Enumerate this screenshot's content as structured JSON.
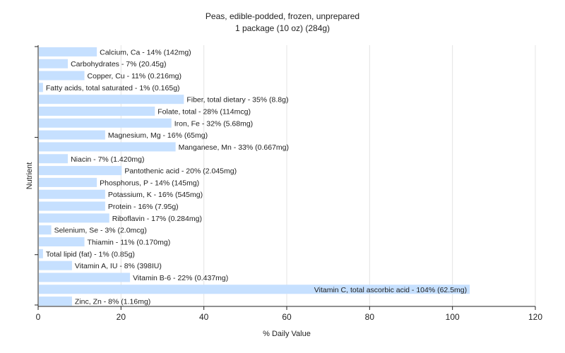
{
  "chart_data": {
    "type": "bar",
    "orientation": "horizontal",
    "title": "Peas, edible-podded, frozen, unprepared",
    "subtitle": "1 package (10 oz) (284g)",
    "xlabel": "% Daily Value",
    "ylabel": "Nutrient",
    "xlim": [
      0,
      120
    ],
    "xticks": [
      0,
      20,
      40,
      60,
      80,
      100,
      120
    ],
    "grid": true,
    "bar_color": "#c6e0ff",
    "categories": [
      "Calcium, Ca - 14% (142mg)",
      "Carbohydrates - 7% (20.45g)",
      "Copper, Cu - 11% (0.216mg)",
      "Fatty acids, total saturated - 1% (0.165g)",
      "Fiber, total dietary - 35% (8.8g)",
      "Folate, total - 28% (114mcg)",
      "Iron, Fe - 32% (5.68mg)",
      "Magnesium, Mg - 16% (65mg)",
      "Manganese, Mn - 33% (0.667mg)",
      "Niacin - 7% (1.420mg)",
      "Pantothenic acid - 20% (2.045mg)",
      "Phosphorus, P - 14% (145mg)",
      "Potassium, K - 16% (545mg)",
      "Protein - 16% (7.95g)",
      "Riboflavin - 17% (0.284mg)",
      "Selenium, Se - 3% (2.0mcg)",
      "Thiamin - 11% (0.170mg)",
      "Total lipid (fat) - 1% (0.85g)",
      "Vitamin A, IU - 8% (398IU)",
      "Vitamin B-6 - 22% (0.437mg)",
      "Vitamin C, total ascorbic acid - 104% (62.5mg)",
      "Zinc, Zn - 8% (1.16mg)"
    ],
    "values": [
      14,
      7,
      11,
      1,
      35,
      28,
      32,
      16,
      33,
      7,
      20,
      14,
      16,
      16,
      17,
      3,
      11,
      1,
      8,
      22,
      104,
      8
    ]
  }
}
